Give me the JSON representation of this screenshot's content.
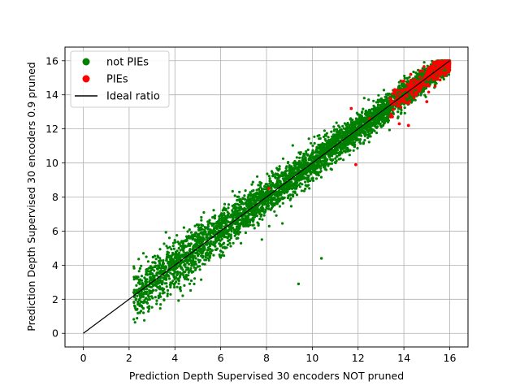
{
  "chart_data": {
    "type": "scatter",
    "title": "",
    "xlabel": "Prediction Depth Supervised 30 encoders NOT pruned",
    "ylabel": "Prediction Depth Supervised 30 encoders 0.9 pruned",
    "xlim": [
      -0.8,
      16.8
    ],
    "ylim": [
      -0.8,
      16.8
    ],
    "xticks": [
      0,
      2,
      4,
      6,
      8,
      10,
      12,
      14,
      16
    ],
    "yticks": [
      0,
      2,
      4,
      6,
      8,
      10,
      12,
      14,
      16
    ],
    "grid": true,
    "legend_position": "upper-left",
    "series": [
      {
        "name": "not PIEs",
        "color": "#008000",
        "marker": "circle",
        "description_points": [
          [
            2.2,
            2.4
          ],
          [
            2.4,
            1.7
          ],
          [
            2.6,
            2.6
          ],
          [
            3.0,
            3.2
          ],
          [
            3.2,
            3.0
          ],
          [
            3.5,
            3.9
          ],
          [
            3.7,
            3.4
          ],
          [
            4.0,
            4.1
          ],
          [
            4.3,
            5.4
          ],
          [
            4.5,
            4.4
          ],
          [
            4.8,
            5.0
          ],
          [
            5.0,
            5.8
          ],
          [
            5.2,
            4.7
          ],
          [
            5.5,
            5.6
          ],
          [
            5.8,
            6.3
          ],
          [
            6.0,
            6.0
          ],
          [
            6.3,
            5.6
          ],
          [
            6.5,
            6.9
          ],
          [
            6.8,
            6.4
          ],
          [
            7.0,
            7.6
          ],
          [
            7.2,
            6.8
          ],
          [
            7.5,
            7.4
          ],
          [
            7.8,
            8.3
          ],
          [
            8.0,
            7.8
          ],
          [
            8.3,
            9.3
          ],
          [
            8.5,
            8.1
          ],
          [
            8.8,
            8.9
          ],
          [
            9.0,
            9.6
          ],
          [
            9.3,
            8.5
          ],
          [
            9.5,
            9.4
          ],
          [
            9.4,
            2.9
          ],
          [
            10.0,
            10.3
          ],
          [
            10.2,
            9.7
          ],
          [
            10.4,
            4.4
          ],
          [
            10.5,
            10.9
          ],
          [
            10.8,
            10.2
          ],
          [
            11.0,
            11.3
          ],
          [
            11.3,
            10.6
          ],
          [
            11.5,
            11.9
          ],
          [
            11.8,
            11.2
          ],
          [
            12.0,
            12.4
          ],
          [
            12.3,
            11.8
          ],
          [
            12.5,
            13.0
          ],
          [
            12.8,
            12.3
          ],
          [
            13.0,
            13.3
          ],
          [
            13.3,
            12.6
          ],
          [
            13.5,
            14.0
          ],
          [
            13.8,
            13.2
          ],
          [
            14.0,
            14.6
          ],
          [
            14.3,
            13.7
          ],
          [
            14.5,
            15.0
          ],
          [
            14.8,
            14.3
          ],
          [
            15.0,
            15.3
          ],
          [
            15.3,
            14.8
          ],
          [
            15.5,
            15.6
          ],
          [
            15.8,
            15.2
          ],
          [
            16.0,
            16.0
          ]
        ]
      },
      {
        "name": "PIEs",
        "color": "#ff0000",
        "marker": "circle",
        "description_points": [
          [
            8.1,
            8.5
          ],
          [
            11.7,
            13.2
          ],
          [
            11.9,
            9.9
          ],
          [
            12.5,
            12.6
          ],
          [
            13.4,
            13.8
          ],
          [
            13.6,
            14.3
          ],
          [
            13.8,
            12.3
          ],
          [
            14.0,
            14.8
          ],
          [
            14.2,
            12.2
          ],
          [
            14.3,
            15.2
          ],
          [
            14.5,
            14.4
          ],
          [
            14.7,
            15.4
          ],
          [
            14.9,
            15.0
          ],
          [
            15.0,
            13.6
          ],
          [
            15.1,
            15.6
          ],
          [
            15.3,
            14.9
          ],
          [
            15.5,
            15.8
          ],
          [
            15.6,
            15.2
          ],
          [
            15.8,
            15.9
          ],
          [
            15.9,
            15.6
          ]
        ]
      },
      {
        "name": "Ideal ratio",
        "color": "#000000",
        "type": "line",
        "x": [
          0,
          16
        ],
        "y": [
          0,
          16
        ]
      }
    ]
  }
}
